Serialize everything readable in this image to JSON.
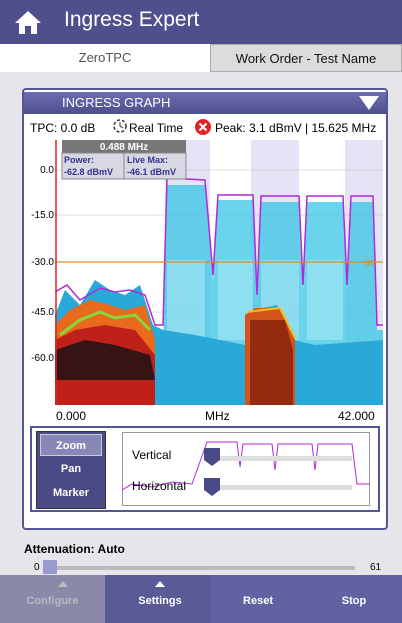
{
  "header": {
    "title": "Ingress Expert"
  },
  "tabs": [
    "ZeroTPC",
    "Work Order - Test Name"
  ],
  "panel": {
    "title": "INGRESS GRAPH",
    "status": {
      "tpc": "TPC: 0.0 dB",
      "mode": "Real Time",
      "peak": "Peak: 3.1 dBmV | 15.625 MHz"
    },
    "marker": {
      "frequency": "0.488 MHz",
      "power_label": "Power:",
      "power": "-62.8 dBmV",
      "live_max_label": "Live Max:",
      "live_max": "-46.1 dBmV"
    },
    "y_axis": [
      "0.0",
      "-15.0",
      "-30.0",
      "-45.0",
      "-60.0"
    ],
    "x_axis": [
      "0.000",
      "MHz",
      "42.000"
    ],
    "threshold": "30",
    "controls": {
      "modes": [
        "Zoom",
        "Pan",
        "Marker"
      ],
      "sliders": [
        "Vertical",
        "Horizontal"
      ]
    }
  },
  "attenuation": {
    "label": "Attenuation: Auto",
    "min": "0",
    "max": "61"
  },
  "toolbar": [
    "Configure",
    "Settings",
    "Reset",
    "Stop"
  ]
}
